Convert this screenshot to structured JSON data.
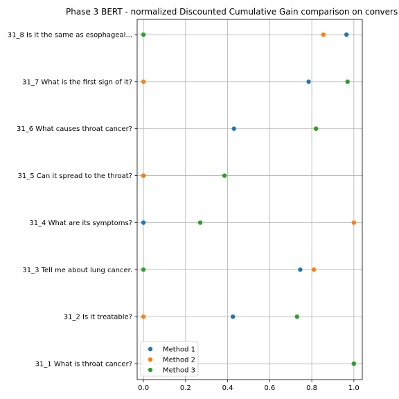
{
  "chart_data": {
    "type": "scatter",
    "title": "Phase 3 BERT - normalized Discounted Cumulative Gain comparison on convers",
    "xlabel": "",
    "ylabel": "",
    "xlim": [
      -0.03,
      1.04
    ],
    "x_ticks": [
      0.0,
      0.2,
      0.4,
      0.6,
      0.8,
      1.0
    ],
    "x_tick_labels": [
      "0.0",
      "0.2",
      "0.4",
      "0.6",
      "0.8",
      "1.0"
    ],
    "grid": true,
    "legend_position": "lower-left",
    "categories": [
      "31_1 What is throat cancer?",
      "31_2 Is it treatable?",
      "31_3 Tell me about lung cancer.",
      "31_4 What are its symptoms?",
      "31_5 Can it spread to the throat?",
      "31_6 What causes throat cancer?",
      "31_7 What is the first sign of it?",
      "31_8 Is it the same as esophageal..."
    ],
    "series": [
      {
        "name": "Method 1",
        "color": "#1f77b4",
        "values": [
          1.0,
          0.425,
          0.745,
          0.0,
          0.0,
          0.43,
          0.785,
          0.965
        ]
      },
      {
        "name": "Method 2",
        "color": "#ff7f0e",
        "values": [
          1.0,
          0.0,
          0.81,
          1.0,
          0.0,
          0.82,
          0.0,
          0.855
        ]
      },
      {
        "name": "Method 3",
        "color": "#2ca02c",
        "values": [
          1.0,
          0.73,
          0.0,
          0.27,
          0.385,
          0.82,
          0.97,
          0.0
        ]
      }
    ]
  }
}
